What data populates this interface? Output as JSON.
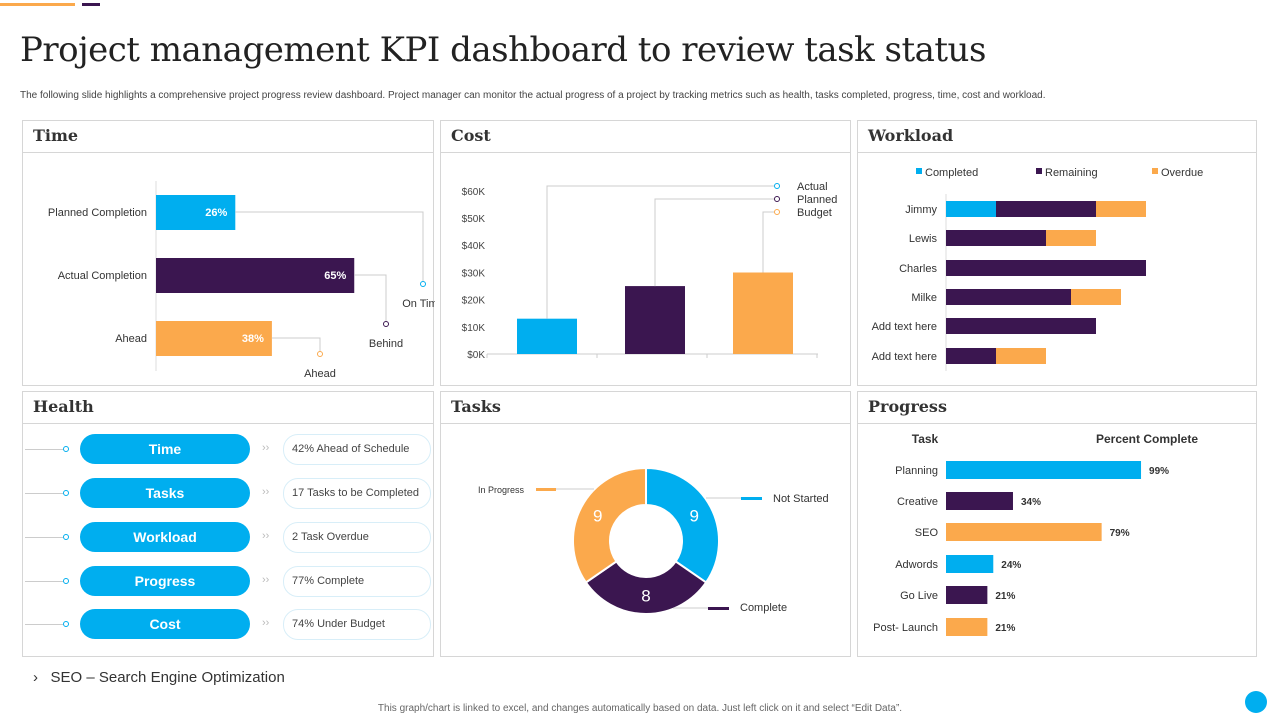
{
  "title": "Project management KPI dashboard to review task status",
  "subtitle": "The following slide highlights a comprehensive project progress review dashboard. Project manager can monitor the actual progress of a project by tracking metrics such as health, tasks completed, progress, time, cost and workload.",
  "colors": {
    "blue": "#00AEEF",
    "purple": "#3B1650",
    "orange": "#FBA94C"
  },
  "panels": {
    "time": "Time",
    "cost": "Cost",
    "workload": "Workload",
    "health": "Health",
    "tasks": "Tasks",
    "progress": "Progress"
  },
  "health": {
    "items": [
      {
        "label": "Time",
        "value": "42% Ahead of Schedule"
      },
      {
        "label": "Tasks",
        "value": "17 Tasks to be Completed"
      },
      {
        "label": "Workload",
        "value": "2 Task Overdue"
      },
      {
        "label": "Progress",
        "value": "77% Complete"
      },
      {
        "label": "Cost",
        "value": "74% Under Budget"
      }
    ]
  },
  "chart_data": [
    {
      "id": "time",
      "type": "bar",
      "orientation": "horizontal",
      "categories": [
        "Planned Completion",
        "Actual Completion",
        "Ahead"
      ],
      "values": [
        26,
        65,
        38
      ],
      "data_labels": [
        "26%",
        "65%",
        "38%"
      ],
      "annotations": [
        "On Time",
        "Behind",
        "Ahead"
      ],
      "colors": [
        "#00AEEF",
        "#3B1650",
        "#FBA94C"
      ]
    },
    {
      "id": "cost",
      "type": "bar",
      "categories": [
        "Actual",
        "Planned",
        "Budget"
      ],
      "values": [
        13000,
        25000,
        30000
      ],
      "yticks": [
        "$0K",
        "$10K",
        "$20K",
        "$30K",
        "$40K",
        "$50K",
        "$60K"
      ],
      "ylim": [
        0,
        60000
      ],
      "legend": [
        "Actual",
        "Planned",
        "Budget"
      ],
      "legend_placement": "top-right",
      "colors": [
        "#00AEEF",
        "#3B1650",
        "#FBA94C"
      ]
    },
    {
      "id": "workload",
      "type": "bar",
      "orientation": "horizontal",
      "stacked": true,
      "categories": [
        "Jimmy",
        "Lewis",
        "Charles",
        "Milke",
        "Add text here",
        "Add text here"
      ],
      "series": [
        {
          "name": "Completed",
          "values": [
            1,
            0,
            0,
            0,
            0,
            0
          ],
          "color": "#00AEEF"
        },
        {
          "name": "Remaining",
          "values": [
            2,
            2,
            4,
            2.5,
            3,
            1
          ],
          "color": "#3B1650"
        },
        {
          "name": "Overdue",
          "values": [
            1,
            1,
            0,
            1,
            0,
            1
          ],
          "color": "#FBA94C"
        }
      ],
      "legend_placement": "top"
    },
    {
      "id": "tasks",
      "type": "pie",
      "donut": true,
      "labels": [
        "Not Started",
        "Complete",
        "In Progress"
      ],
      "values": [
        9,
        8,
        9
      ],
      "colors": [
        "#00AEEF",
        "#3B1650",
        "#FBA94C"
      ]
    },
    {
      "id": "progress",
      "type": "bar",
      "orientation": "horizontal",
      "col_headers": [
        "Task",
        "Percent Complete"
      ],
      "categories": [
        "Planning",
        "Creative",
        "SEO",
        "Adwords",
        "Go Live",
        "Post- Launch"
      ],
      "values": [
        99,
        34,
        79,
        24,
        21,
        21
      ],
      "data_labels": [
        "99%",
        "34%",
        "79%",
        "24%",
        "21%",
        "21%"
      ],
      "colors": [
        "#00AEEF",
        "#3B1650",
        "#FBA94C",
        "#00AEEF",
        "#3B1650",
        "#FBA94C"
      ]
    }
  ],
  "note": "SEO – Search Engine Optimization",
  "note_bullet": "›",
  "footer": "This graph/chart is linked to excel, and changes automatically based on data. Just left click on it and select “Edit Data”."
}
